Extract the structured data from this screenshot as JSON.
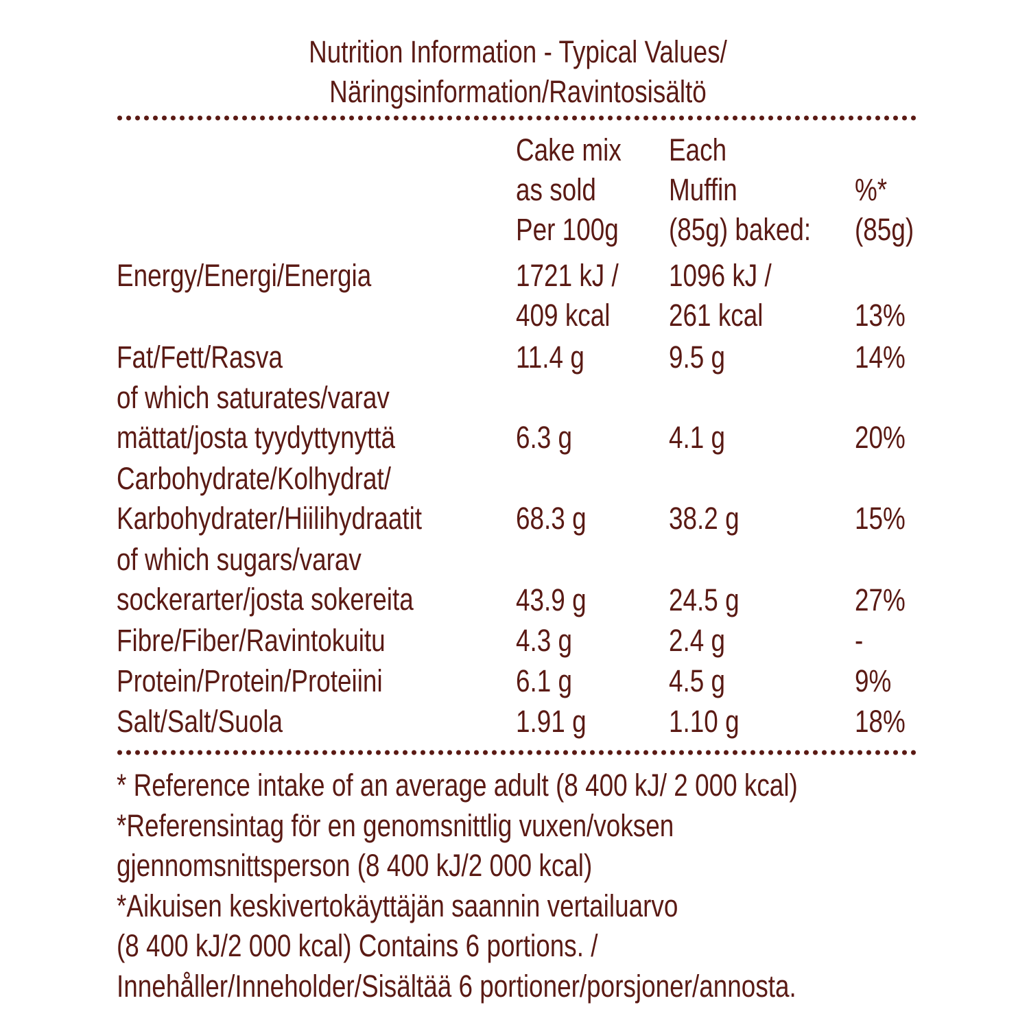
{
  "title": {
    "line1": "Nutrition Information - Typical Values/",
    "line2": "Näringsinformation/Ravintosisältö"
  },
  "header": {
    "mix": [
      "Cake mix",
      "as sold",
      "Per 100g"
    ],
    "muffin": [
      "Each",
      "Muffin",
      "(85g) baked:"
    ],
    "pct": [
      "%*",
      "(85g)"
    ]
  },
  "rows": [
    {
      "label": [
        "Energy/Energi/Energia"
      ],
      "mix": [
        "1721 kJ /",
        "409 kcal"
      ],
      "muffin": [
        "1096 kJ /",
        "261 kcal"
      ],
      "pct": "13%"
    },
    {
      "label": [
        "Fat/Fett/Rasva"
      ],
      "mix": [
        "11.4 g"
      ],
      "muffin": [
        "9.5 g"
      ],
      "pct": "14%"
    },
    {
      "label": [
        "of which saturates/varav",
        "mättat/josta tyydyttynyttä"
      ],
      "mix": [
        "6.3 g"
      ],
      "muffin": [
        "4.1 g"
      ],
      "pct": "20%"
    },
    {
      "label": [
        "Carbohydrate/Kolhydrat/",
        "Karbohydrater/Hiilihydraatit"
      ],
      "mix": [
        "68.3 g"
      ],
      "muffin": [
        "38.2 g"
      ],
      "pct": "15%"
    },
    {
      "label": [
        "of which sugars/varav",
        "sockerarter/josta sokereita"
      ],
      "mix": [
        "43.9 g"
      ],
      "muffin": [
        "24.5 g"
      ],
      "pct": "27%"
    },
    {
      "label": [
        "Fibre/Fiber/Ravintokuitu"
      ],
      "mix": [
        "4.3 g"
      ],
      "muffin": [
        "2.4 g"
      ],
      "pct": "-"
    },
    {
      "label": [
        "Protein/Protein/Proteiini"
      ],
      "mix": [
        "6.1 g"
      ],
      "muffin": [
        "4.5 g"
      ],
      "pct": "9%"
    },
    {
      "label": [
        "Salt/Salt/Suola"
      ],
      "mix": [
        "1.91 g"
      ],
      "muffin": [
        "1.10 g"
      ],
      "pct": "18%"
    }
  ],
  "footnote": [
    "* Reference intake of an average adult (8 400 kJ/ 2 000 kcal)",
    "*Referensintag för en genomsnittlig vuxen/voksen",
    "gjennomsnittsperson (8 400 kJ/2 000 kcal)",
    "*Aikuisen keskivertokäyttäjän saannin vertailuarvo",
    "(8 400 kJ/2 000 kcal) Contains 6 portions. /",
    "Innehåller/Inneholder/Sisältää 6 portioner/porsjoner/annosta."
  ],
  "colors": {
    "text": "#5a1a14",
    "background": "#ffffff"
  }
}
